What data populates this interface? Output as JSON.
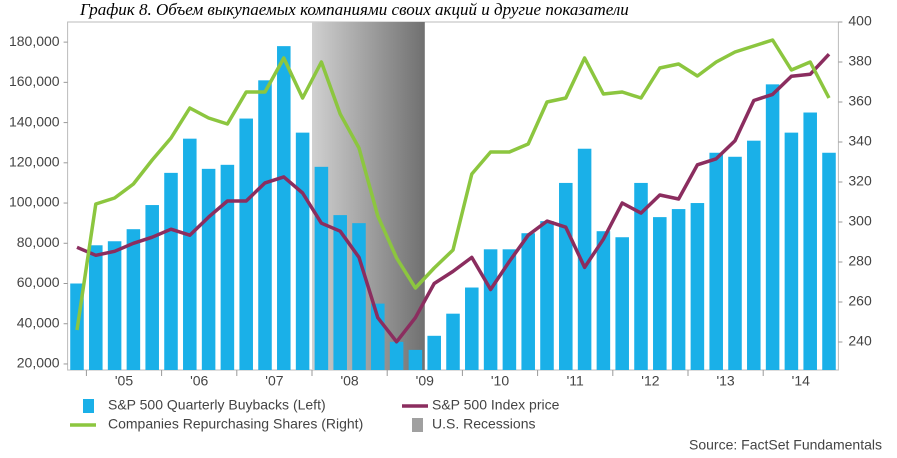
{
  "chart_data": {
    "type": "combo",
    "title": "График 8. Объем выкупаемых компаниями своих акций и другие показатели",
    "source": "Source: FactSet Fundamentals",
    "categories": [
      null,
      null,
      "'05",
      null,
      null,
      null,
      "'06",
      null,
      null,
      null,
      "'07",
      null,
      null,
      null,
      "'08",
      null,
      null,
      null,
      "'09",
      null,
      null,
      null,
      "'10",
      null,
      null,
      null,
      "'11",
      null,
      null,
      null,
      "'12",
      null,
      null,
      null,
      "'13",
      null,
      null,
      null,
      "'14",
      null,
      null
    ],
    "series": [
      {
        "name": "S&P 500 Quarterly Buybacks (Left)",
        "kind": "bar",
        "axis": "y",
        "color": "#1ab0e8",
        "values": [
          60000,
          79000,
          81000,
          87000,
          99000,
          115000,
          132000,
          117000,
          119000,
          142000,
          161000,
          178000,
          135000,
          118000,
          94000,
          90000,
          50000,
          31000,
          27000,
          34000,
          45000,
          58000,
          77000,
          77000,
          85000,
          91000,
          110000,
          127000,
          86000,
          83000,
          110000,
          93000,
          97000,
          100000,
          125000,
          123000,
          131000,
          159000,
          135000,
          145000,
          125000
        ]
      },
      {
        "name": "S&P 500 Index price",
        "kind": "line",
        "axis": "y",
        "color": "#8b2d5f",
        "values": [
          78000,
          74000,
          76000,
          80000,
          83000,
          87000,
          84000,
          93000,
          101000,
          101000,
          110000,
          113000,
          105000,
          90000,
          86000,
          73000,
          43000,
          31000,
          43000,
          60000,
          66000,
          73000,
          57000,
          71000,
          84000,
          91000,
          88000,
          68000,
          82000,
          100000,
          95000,
          104000,
          102000,
          119000,
          122000,
          131000,
          151000,
          154000,
          163000,
          164000,
          174000
        ]
      },
      {
        "name": "Companies Repurchasing Shares (Right)",
        "kind": "line",
        "axis": "y2",
        "color": "#8cc63f",
        "values": [
          246,
          309,
          312,
          319,
          331,
          342,
          357,
          352,
          349,
          365,
          365,
          382,
          362,
          380,
          354,
          337,
          303,
          282,
          267,
          277,
          286,
          324,
          335,
          335,
          339,
          360,
          362,
          382,
          364,
          365,
          362,
          377,
          379,
          373,
          380,
          385,
          388,
          391,
          376,
          380,
          362
        ]
      }
    ],
    "recession": {
      "name": "U.S. Recessions",
      "color": "#a0a0a0",
      "from": 13,
      "to": 18
    },
    "ylim": [
      17000,
      190000
    ],
    "yticks": [
      {
        "value": 20000,
        "label": "20,000"
      },
      {
        "value": 40000,
        "label": "40,000"
      },
      {
        "value": 60000,
        "label": "60,000"
      },
      {
        "value": 80000,
        "label": "80,000"
      },
      {
        "value": 100000,
        "label": "100,000"
      },
      {
        "value": 120000,
        "label": "120,000"
      },
      {
        "value": 140000,
        "label": "140,000"
      },
      {
        "value": 160000,
        "label": "160,000"
      },
      {
        "value": 180000,
        "label": "180,000"
      }
    ],
    "y2lim": [
      226,
      400
    ],
    "y2ticks": [
      240,
      260,
      280,
      300,
      320,
      340,
      360,
      380,
      400
    ]
  }
}
